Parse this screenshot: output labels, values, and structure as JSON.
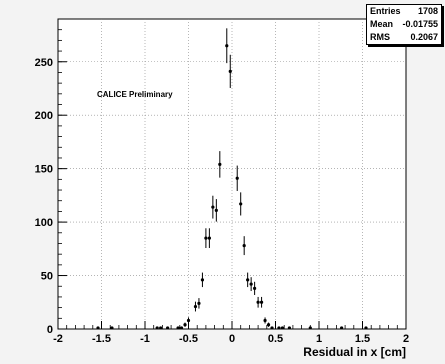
{
  "chart_data": {
    "type": "scatter",
    "error_bars": true,
    "xlabel": "Residual in x [cm]",
    "ylabel": "",
    "title": "",
    "xlim": [
      -2,
      2
    ],
    "ylim": [
      0,
      290
    ],
    "grid": true,
    "x_ticks": [
      "-2",
      "-1.5",
      "-1",
      "-0.5",
      "0",
      "0.5",
      "1",
      "1.5",
      "2"
    ],
    "y_ticks": [
      "0",
      "50",
      "100",
      "150",
      "200",
      "250"
    ],
    "annotation": "CALICE Preliminary",
    "stats": [
      {
        "label": "Entries",
        "value": "1708"
      },
      {
        "label": "Mean",
        "value": "-0.01755"
      },
      {
        "label": "RMS",
        "value": "0.2067"
      }
    ],
    "points": [
      {
        "x": -1.54,
        "y": 1
      },
      {
        "x": -1.38,
        "y": 1
      },
      {
        "x": -0.86,
        "y": 1
      },
      {
        "x": -0.82,
        "y": 1
      },
      {
        "x": -0.74,
        "y": 1
      },
      {
        "x": -0.62,
        "y": 1
      },
      {
        "x": -0.58,
        "y": 1
      },
      {
        "x": -0.54,
        "y": 4
      },
      {
        "x": -0.5,
        "y": 8
      },
      {
        "x": -0.42,
        "y": 21
      },
      {
        "x": -0.38,
        "y": 24
      },
      {
        "x": -0.34,
        "y": 46
      },
      {
        "x": -0.3,
        "y": 85
      },
      {
        "x": -0.26,
        "y": 85
      },
      {
        "x": -0.22,
        "y": 114
      },
      {
        "x": -0.18,
        "y": 111
      },
      {
        "x": -0.14,
        "y": 154
      },
      {
        "x": -0.06,
        "y": 265
      },
      {
        "x": -0.02,
        "y": 241
      },
      {
        "x": 0.06,
        "y": 141
      },
      {
        "x": 0.1,
        "y": 117
      },
      {
        "x": 0.14,
        "y": 78
      },
      {
        "x": 0.18,
        "y": 46
      },
      {
        "x": 0.22,
        "y": 42
      },
      {
        "x": 0.26,
        "y": 38
      },
      {
        "x": 0.3,
        "y": 25
      },
      {
        "x": 0.34,
        "y": 25
      },
      {
        "x": 0.38,
        "y": 8
      },
      {
        "x": 0.42,
        "y": 4
      },
      {
        "x": 0.46,
        "y": 1
      },
      {
        "x": 0.54,
        "y": 1
      },
      {
        "x": 0.58,
        "y": 1
      },
      {
        "x": 0.66,
        "y": 1
      },
      {
        "x": 0.9,
        "y": 1
      },
      {
        "x": 1.26,
        "y": 1
      },
      {
        "x": 1.54,
        "y": 1
      }
    ]
  }
}
